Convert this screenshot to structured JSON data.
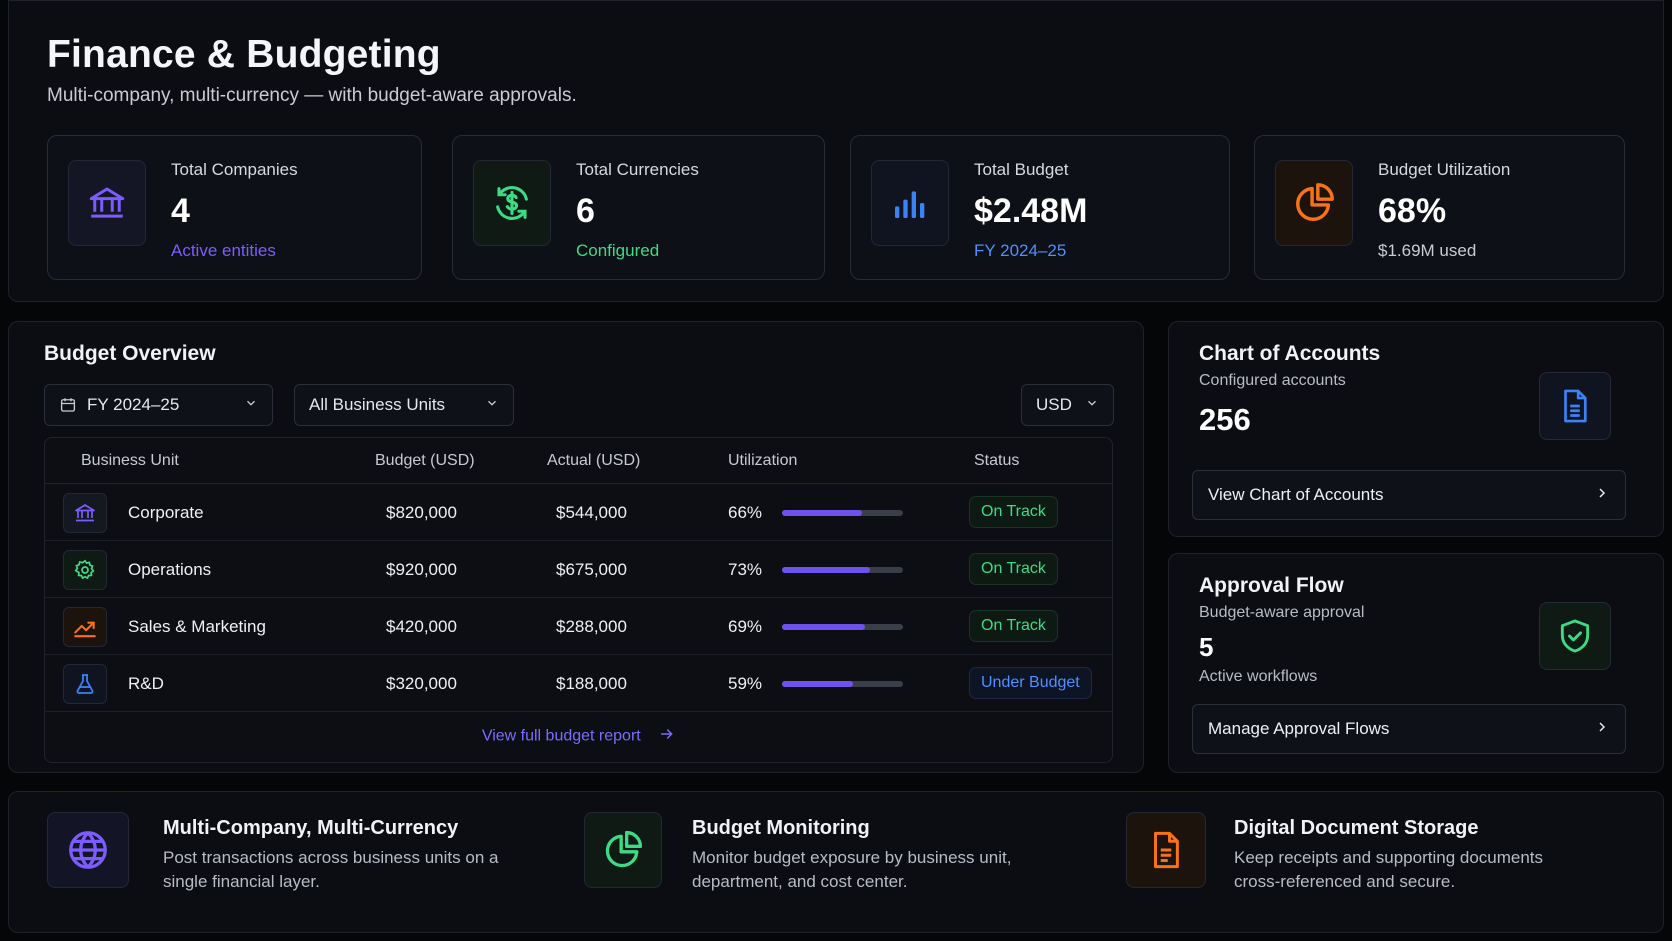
{
  "header": {
    "title": "Finance & Budgeting",
    "subtitle": "Multi-company, multi-currency — with budget-aware approvals."
  },
  "stats": [
    {
      "label": "Total Companies",
      "value": "4",
      "sub": "Active entities",
      "icon": "bank-icon",
      "accent": "#7c5cff"
    },
    {
      "label": "Total Currencies",
      "value": "6",
      "sub": "Configured",
      "icon": "currency-exchange-icon",
      "accent": "#3ddc84"
    },
    {
      "label": "Total Budget",
      "value": "$2.48M",
      "sub": "FY 2024–25",
      "icon": "bar-chart-icon",
      "accent": "#3b82f6"
    },
    {
      "label": "Budget Utilization",
      "value": "68%",
      "sub": "$1.69M used",
      "icon": "pie-chart-icon",
      "accent": "#f97316"
    }
  ],
  "overview": {
    "title": "Budget Overview",
    "filters": {
      "year": "FY 2024–25",
      "units": "All Business Units",
      "currency": "USD"
    },
    "columns": [
      "Business Unit",
      "Budget (USD)",
      "Actual (USD)",
      "Utilization",
      "Status"
    ],
    "rows": [
      {
        "name": "Corporate",
        "budget": "$820,000",
        "actual": "$544,000",
        "util": "66%",
        "util_value": 0.66,
        "status": "On Track",
        "icon": "bank-icon"
      },
      {
        "name": "Operations",
        "budget": "$920,000",
        "actual": "$675,000",
        "util": "73%",
        "util_value": 0.73,
        "status": "On Track",
        "icon": "gear-icon"
      },
      {
        "name": "Sales & Marketing",
        "budget": "$420,000",
        "actual": "$288,000",
        "util": "69%",
        "util_value": 0.69,
        "status": "On Track",
        "icon": "trend-up-icon"
      },
      {
        "name": "R&D",
        "budget": "$320,000",
        "actual": "$188,000",
        "util": "59%",
        "util_value": 0.59,
        "status": "Under Budget",
        "icon": "flask-icon"
      }
    ],
    "report_link": "View full budget report"
  },
  "coa": {
    "title": "Chart of Accounts",
    "sub": "Configured accounts",
    "value": "256",
    "button": "View Chart of Accounts"
  },
  "approval": {
    "title": "Approval Flow",
    "sub": "Budget-aware approval",
    "value": "5",
    "value_sub": "Active workflows",
    "button": "Manage Approval Flows"
  },
  "features": [
    {
      "title": "Multi-Company, Multi-Currency",
      "line1": "Post transactions across business units on a",
      "line2": "single financial layer.",
      "icon": "globe-icon"
    },
    {
      "title": "Budget Monitoring",
      "line1": "Monitor budget exposure by business unit,",
      "line2": "department, and cost center.",
      "icon": "pie-chart-icon"
    },
    {
      "title": "Digital Document Storage",
      "line1": "Keep receipts and supporting documents",
      "line2": "cross-referenced and secure.",
      "icon": "document-icon"
    }
  ]
}
